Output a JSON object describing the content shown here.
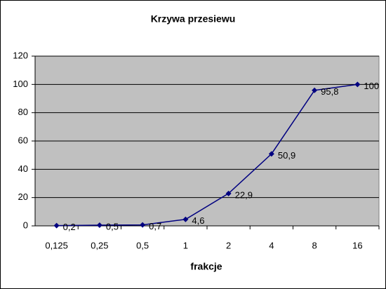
{
  "chart_data": {
    "type": "line",
    "title": "Krzywa przesiewu",
    "x_label": "frakcje",
    "categories": [
      "0,125",
      "0,25",
      "0,5",
      "1",
      "2",
      "4",
      "8",
      "16"
    ],
    "series": [
      {
        "color": "#000080",
        "values": [
          0.2,
          0.5,
          0.7,
          4.6,
          22.9,
          50.9,
          95.8,
          100
        ],
        "value_labels": [
          "0,2",
          "0,5",
          "0,7",
          "4,6",
          "22,9",
          "50,9",
          "95,8",
          "100"
        ]
      }
    ],
    "ylim": [
      0,
      120
    ],
    "yticks": [
      0,
      20,
      40,
      60,
      80,
      100,
      120
    ],
    "grid": true,
    "plot_background": "#c0c0c0"
  }
}
